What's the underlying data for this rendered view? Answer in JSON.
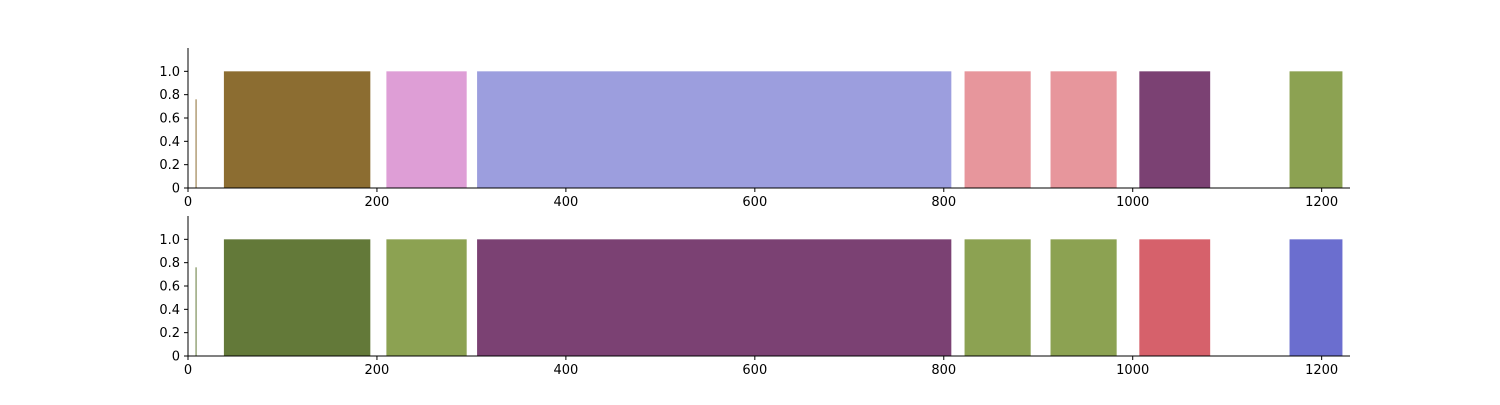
{
  "chart_data": [
    {
      "type": "bar",
      "xlim": [
        0,
        1230
      ],
      "ylim": [
        0,
        1.2
      ],
      "xticks": [
        "0",
        "200",
        "400",
        "600",
        "800",
        "1000",
        "1200"
      ],
      "yticks": [
        "0",
        "0.2",
        "0.4",
        "0.6",
        "0.8",
        "1.0"
      ],
      "grid": false,
      "segments": [
        {
          "start": 8,
          "end": 9,
          "value": 0.76,
          "color": "#8c6d31"
        },
        {
          "start": 38,
          "end": 193,
          "value": 1.0,
          "color": "#8c6d31"
        },
        {
          "start": 210,
          "end": 295,
          "value": 1.0,
          "color": "#de9ed6"
        },
        {
          "start": 306,
          "end": 808,
          "value": 1.0,
          "color": "#9c9ede"
        },
        {
          "start": 822,
          "end": 892,
          "value": 1.0,
          "color": "#e7969c"
        },
        {
          "start": 913,
          "end": 983,
          "value": 1.0,
          "color": "#e7969c"
        },
        {
          "start": 1007,
          "end": 1082,
          "value": 1.0,
          "color": "#7b4173"
        },
        {
          "start": 1166,
          "end": 1222,
          "value": 1.0,
          "color": "#8ca252"
        }
      ]
    },
    {
      "type": "bar",
      "xlim": [
        0,
        1230
      ],
      "ylim": [
        0,
        1.2
      ],
      "xticks": [
        "0",
        "200",
        "400",
        "600",
        "800",
        "1000",
        "1200"
      ],
      "yticks": [
        "0",
        "0.2",
        "0.4",
        "0.6",
        "0.8",
        "1.0"
      ],
      "grid": false,
      "segments": [
        {
          "start": 8,
          "end": 9,
          "value": 0.76,
          "color": "#637939"
        },
        {
          "start": 38,
          "end": 193,
          "value": 1.0,
          "color": "#637939"
        },
        {
          "start": 210,
          "end": 295,
          "value": 1.0,
          "color": "#8ca252"
        },
        {
          "start": 306,
          "end": 808,
          "value": 1.0,
          "color": "#7b4173"
        },
        {
          "start": 822,
          "end": 892,
          "value": 1.0,
          "color": "#8ca252"
        },
        {
          "start": 913,
          "end": 983,
          "value": 1.0,
          "color": "#8ca252"
        },
        {
          "start": 1007,
          "end": 1082,
          "value": 1.0,
          "color": "#d6616b"
        },
        {
          "start": 1166,
          "end": 1222,
          "value": 1.0,
          "color": "#6b6ecf"
        }
      ]
    }
  ]
}
